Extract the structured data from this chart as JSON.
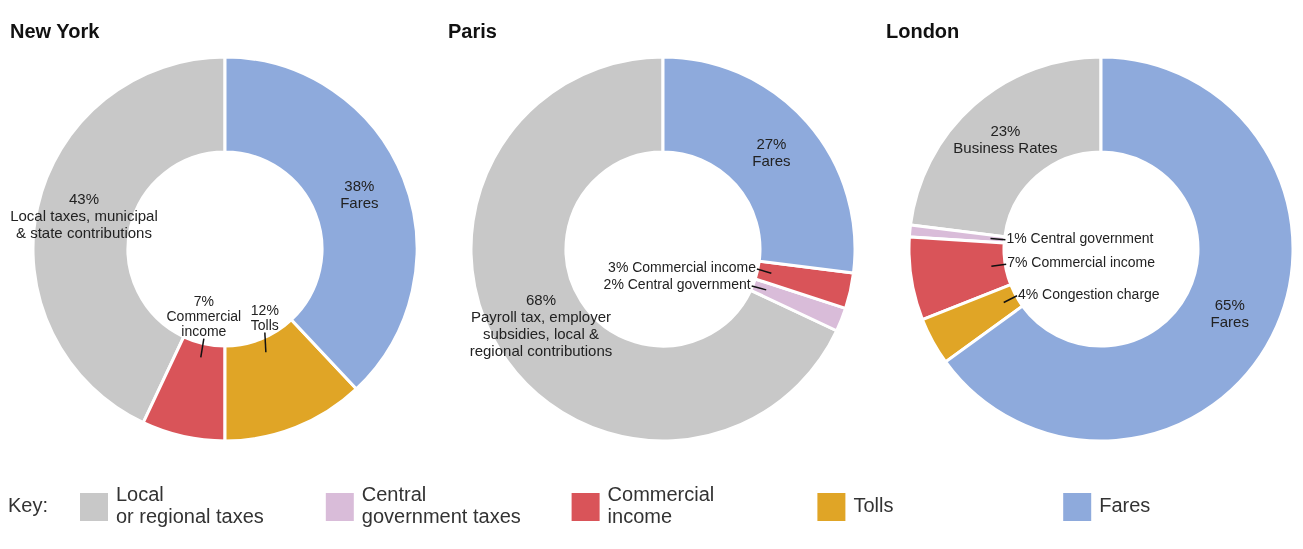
{
  "chart_data": [
    {
      "type": "donut",
      "title": "New York",
      "categories": [
        null,
        null,
        null,
        null
      ],
      "values": [
        43,
        7,
        12,
        38
      ],
      "colors": [
        "#c8c8c8",
        "#d95459",
        "#e0a526",
        "#8eaadc"
      ],
      "value_labels": [
        "43% Local taxes, municipal & state contributions",
        "7% Commercial income",
        "12% Tolls",
        "38% Fares"
      ]
    },
    {
      "type": "donut",
      "title": "Paris",
      "categories": [
        null,
        null,
        null,
        null
      ],
      "values": [
        68,
        2,
        3,
        27
      ],
      "colors": [
        "#c8c8c8",
        "#d9bcd9",
        "#d95459",
        "#8eaadc"
      ],
      "value_labels": [
        "68% Payroll tax, employer subsidies, local & regional contributions",
        "2% Central government",
        "3% Commercial income",
        "27% Fares"
      ]
    },
    {
      "type": "donut",
      "title": "London",
      "categories": [
        "Local or regional taxes",
        "Central government taxes",
        "Commercial income",
        "Tolls",
        "Fares"
      ],
      "values": [
        23,
        1,
        7,
        4,
        65
      ],
      "colors": [
        "#c8c8c8",
        "#d9bcd9",
        "#d95459",
        "#e0a526",
        "#8eaadc"
      ],
      "value_labels": [
        "23% Business Rates",
        "1% Central government",
        "7% Commercial income",
        "4% Congestion charge",
        "65% Fares"
      ],
      "legend": "bottom",
      "legend_title": "Key:"
    }
  ]
}
